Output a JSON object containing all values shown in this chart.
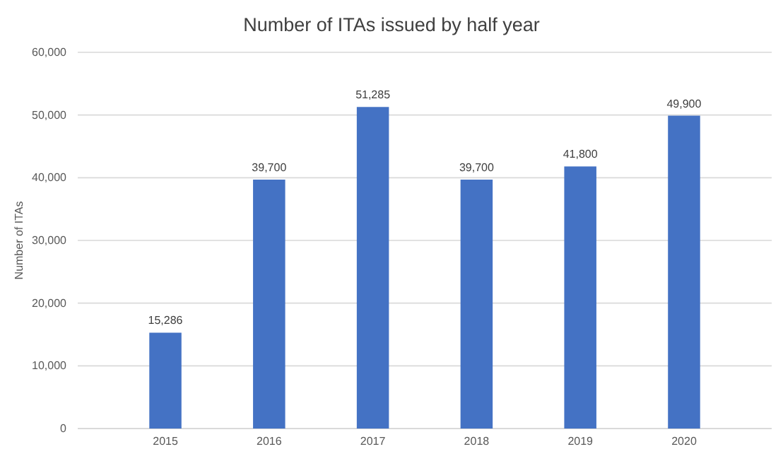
{
  "chart_data": {
    "type": "bar",
    "title": "Number of ITAs issued by half year",
    "ylabel": "Number of ITAs",
    "categories": [
      "2015",
      "2016",
      "2017",
      "2018",
      "2019",
      "2020"
    ],
    "values": [
      15286,
      39700,
      51285,
      39700,
      41800,
      49900
    ],
    "color": "#4472c4",
    "ylim": [
      0,
      60000
    ],
    "yticks": [
      {
        "value": 0,
        "label": "0"
      },
      {
        "value": 10000,
        "label": "10,000"
      },
      {
        "value": 20000,
        "label": "20,000"
      },
      {
        "value": 30000,
        "label": "30,000"
      },
      {
        "value": 40000,
        "label": "40,000"
      },
      {
        "value": 50000,
        "label": "50,000"
      },
      {
        "value": 60000,
        "label": "60,000"
      }
    ],
    "value_labels": [
      "15,286",
      "39,700",
      "51,285",
      "39,700",
      "41,800",
      "49,900"
    ],
    "grid": true
  }
}
